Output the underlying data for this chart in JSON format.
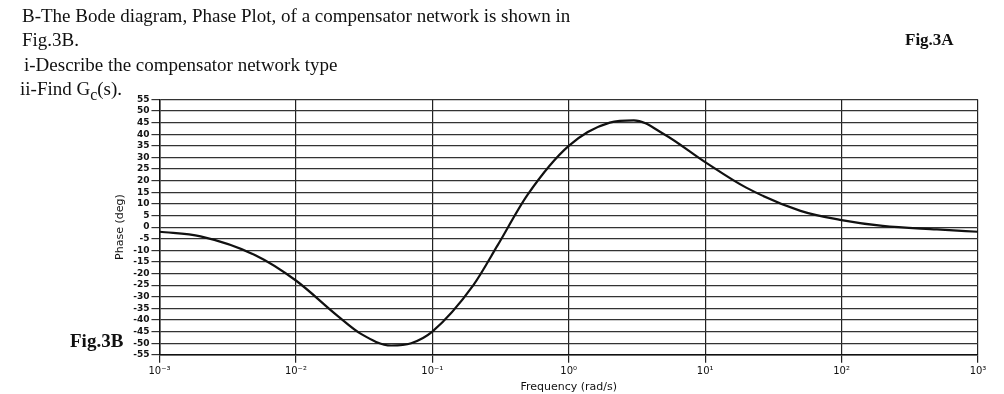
{
  "chart_data": {
    "type": "line",
    "title": "B-The Bode diagram, Phase Plot, of a compensator network is shown in Fig.3B.",
    "annotations": [
      "i-Describe the compensator network type",
      "ii-Find G$_{c}$(s).",
      "Fig.3B",
      "Fig.3A"
    ],
    "xlabel": "Frequency (rad/s)",
    "ylabel": "Phase (deg)",
    "x": [
      0.001,
      0.002,
      0.005,
      0.01,
      0.02,
      0.03,
      0.05,
      0.07,
      0.1,
      0.2,
      0.3,
      0.5,
      1,
      2,
      3,
      5,
      10,
      20,
      50,
      100,
      200,
      500,
      1000
    ],
    "series": [
      {
        "color": "#111111",
        "values": [
          -2,
          -4,
          -12,
          -23,
          -38,
          -46,
          -51,
          -50,
          -45,
          -25,
          -8,
          14,
          35,
          45,
          46,
          40,
          28,
          17,
          7,
          3,
          0.5,
          -1,
          -2
        ]
      }
    ],
    "log": "x",
    "xlim": [
      0.001,
      1000
    ],
    "xticks": [
      {
        "value": 0.001,
        "label": "10⁻³"
      },
      {
        "value": 0.01,
        "label": "10⁻²"
      },
      {
        "value": 0.1,
        "label": "10⁻¹"
      },
      {
        "value": 1,
        "label": "10⁰"
      },
      {
        "value": 10,
        "label": "10¹"
      },
      {
        "value": 100,
        "label": "10²"
      },
      {
        "value": 1000,
        "label": "10³"
      }
    ],
    "ylim": [
      -55,
      55
    ],
    "yticks": [
      -55,
      -50,
      -45,
      -40,
      -35,
      -30,
      -25,
      -20,
      -15,
      -10,
      -5,
      0,
      5,
      10,
      15,
      20,
      25,
      30,
      35,
      40,
      45,
      50,
      55
    ],
    "grid": true,
    "marker": "none",
    "line_style": "solid",
    "legend": false
  }
}
